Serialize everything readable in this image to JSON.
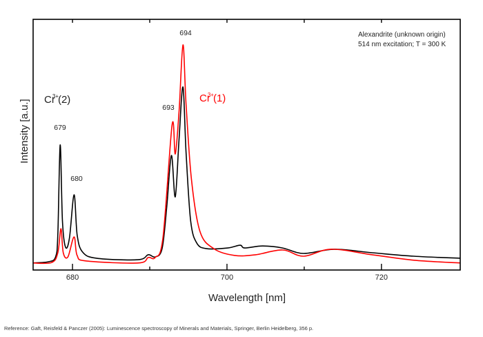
{
  "chart_data": {
    "type": "line",
    "title": "",
    "xlabel": "Wavelength [nm]",
    "ylabel": "Intensity [a.u.]",
    "xlim": [
      674.9,
      730.2
    ],
    "ylim": [
      0,
      100
    ],
    "grid": false,
    "x_ticks": [
      680,
      700,
      720
    ],
    "x_minor_ticks": [
      690,
      710
    ],
    "x_tick_labels": [
      "680",
      "700",
      "720"
    ],
    "top_ticks": [
      680,
      690,
      700,
      710,
      720
    ],
    "annotations": {
      "sample_line1": "Alexandrite (unknown origin)",
      "sample_line2": "514 nm excitation; T = 300 K",
      "cr2_label_base": "Cr",
      "cr2_label_sup": "3+",
      "cr2_label_suffix": "(2)",
      "cr1_label_base": "Cr",
      "cr1_label_sup": "3+",
      "cr1_label_suffix": "(1)",
      "peak_679": "679",
      "peak_680": "680",
      "peak_693": "693",
      "peak_694": "694"
    },
    "series": [
      {
        "name": "black",
        "color": "#000000",
        "x": [
          674.9,
          676.9,
          677.8,
          678.1,
          678.4,
          678.7,
          679.1,
          679.6,
          680.2,
          680.6,
          681.3,
          683.1,
          688.5,
          689.8,
          690.7,
          691.6,
          692.2,
          692.8,
          693.3,
          693.8,
          694.3,
          694.7,
          695.3,
          696.1,
          697.4,
          700.1,
          701.7,
          702.3,
          704.6,
          707.2,
          709.9,
          713.9,
          718.8,
          724.2,
          730.2
        ],
        "y": [
          2.8,
          3.3,
          5.2,
          14,
          49.9,
          19.6,
          9.1,
          12.7,
          30,
          14,
          7.2,
          4.7,
          4.1,
          6.1,
          5.2,
          8.5,
          25,
          45.7,
          29.2,
          52.6,
          73,
          47.1,
          19.6,
          10.7,
          8.5,
          8.8,
          9.9,
          8.8,
          9.6,
          8.8,
          6.6,
          8.3,
          6.9,
          5.5,
          4.7
        ]
      },
      {
        "name": "red",
        "color": "#ff0000",
        "x": [
          674.9,
          677.3,
          678.1,
          678.5,
          678.8,
          679.4,
          680.2,
          680.6,
          681.8,
          688.5,
          689.8,
          690.7,
          691.7,
          692.9,
          693.3,
          693.8,
          694.3,
          694.7,
          695.4,
          696.5,
          698.3,
          701.0,
          703.7,
          707.2,
          709.9,
          713.5,
          718.8,
          724.2,
          730.2
        ],
        "y": [
          2.8,
          3,
          6.9,
          16.5,
          6.9,
          5.2,
          13.2,
          5.8,
          3.6,
          2.8,
          5,
          5,
          12.7,
          58.1,
          46.3,
          63.6,
          89.8,
          66.4,
          36.1,
          15.4,
          8.5,
          5.8,
          6.1,
          8,
          5.5,
          8.3,
          6.1,
          3.9,
          2.8
        ]
      }
    ],
    "colors": {
      "red_series": "#ff0000",
      "black_series": "#000000",
      "cr1_label": "#ff0000"
    }
  },
  "footer": {
    "reference": "Reference: Gaft, Reisfeld & Panczer (2005): Luminescence spectroscopy of Minerals and Materials, Springer, Berlin Heidelberg, 356 p."
  }
}
